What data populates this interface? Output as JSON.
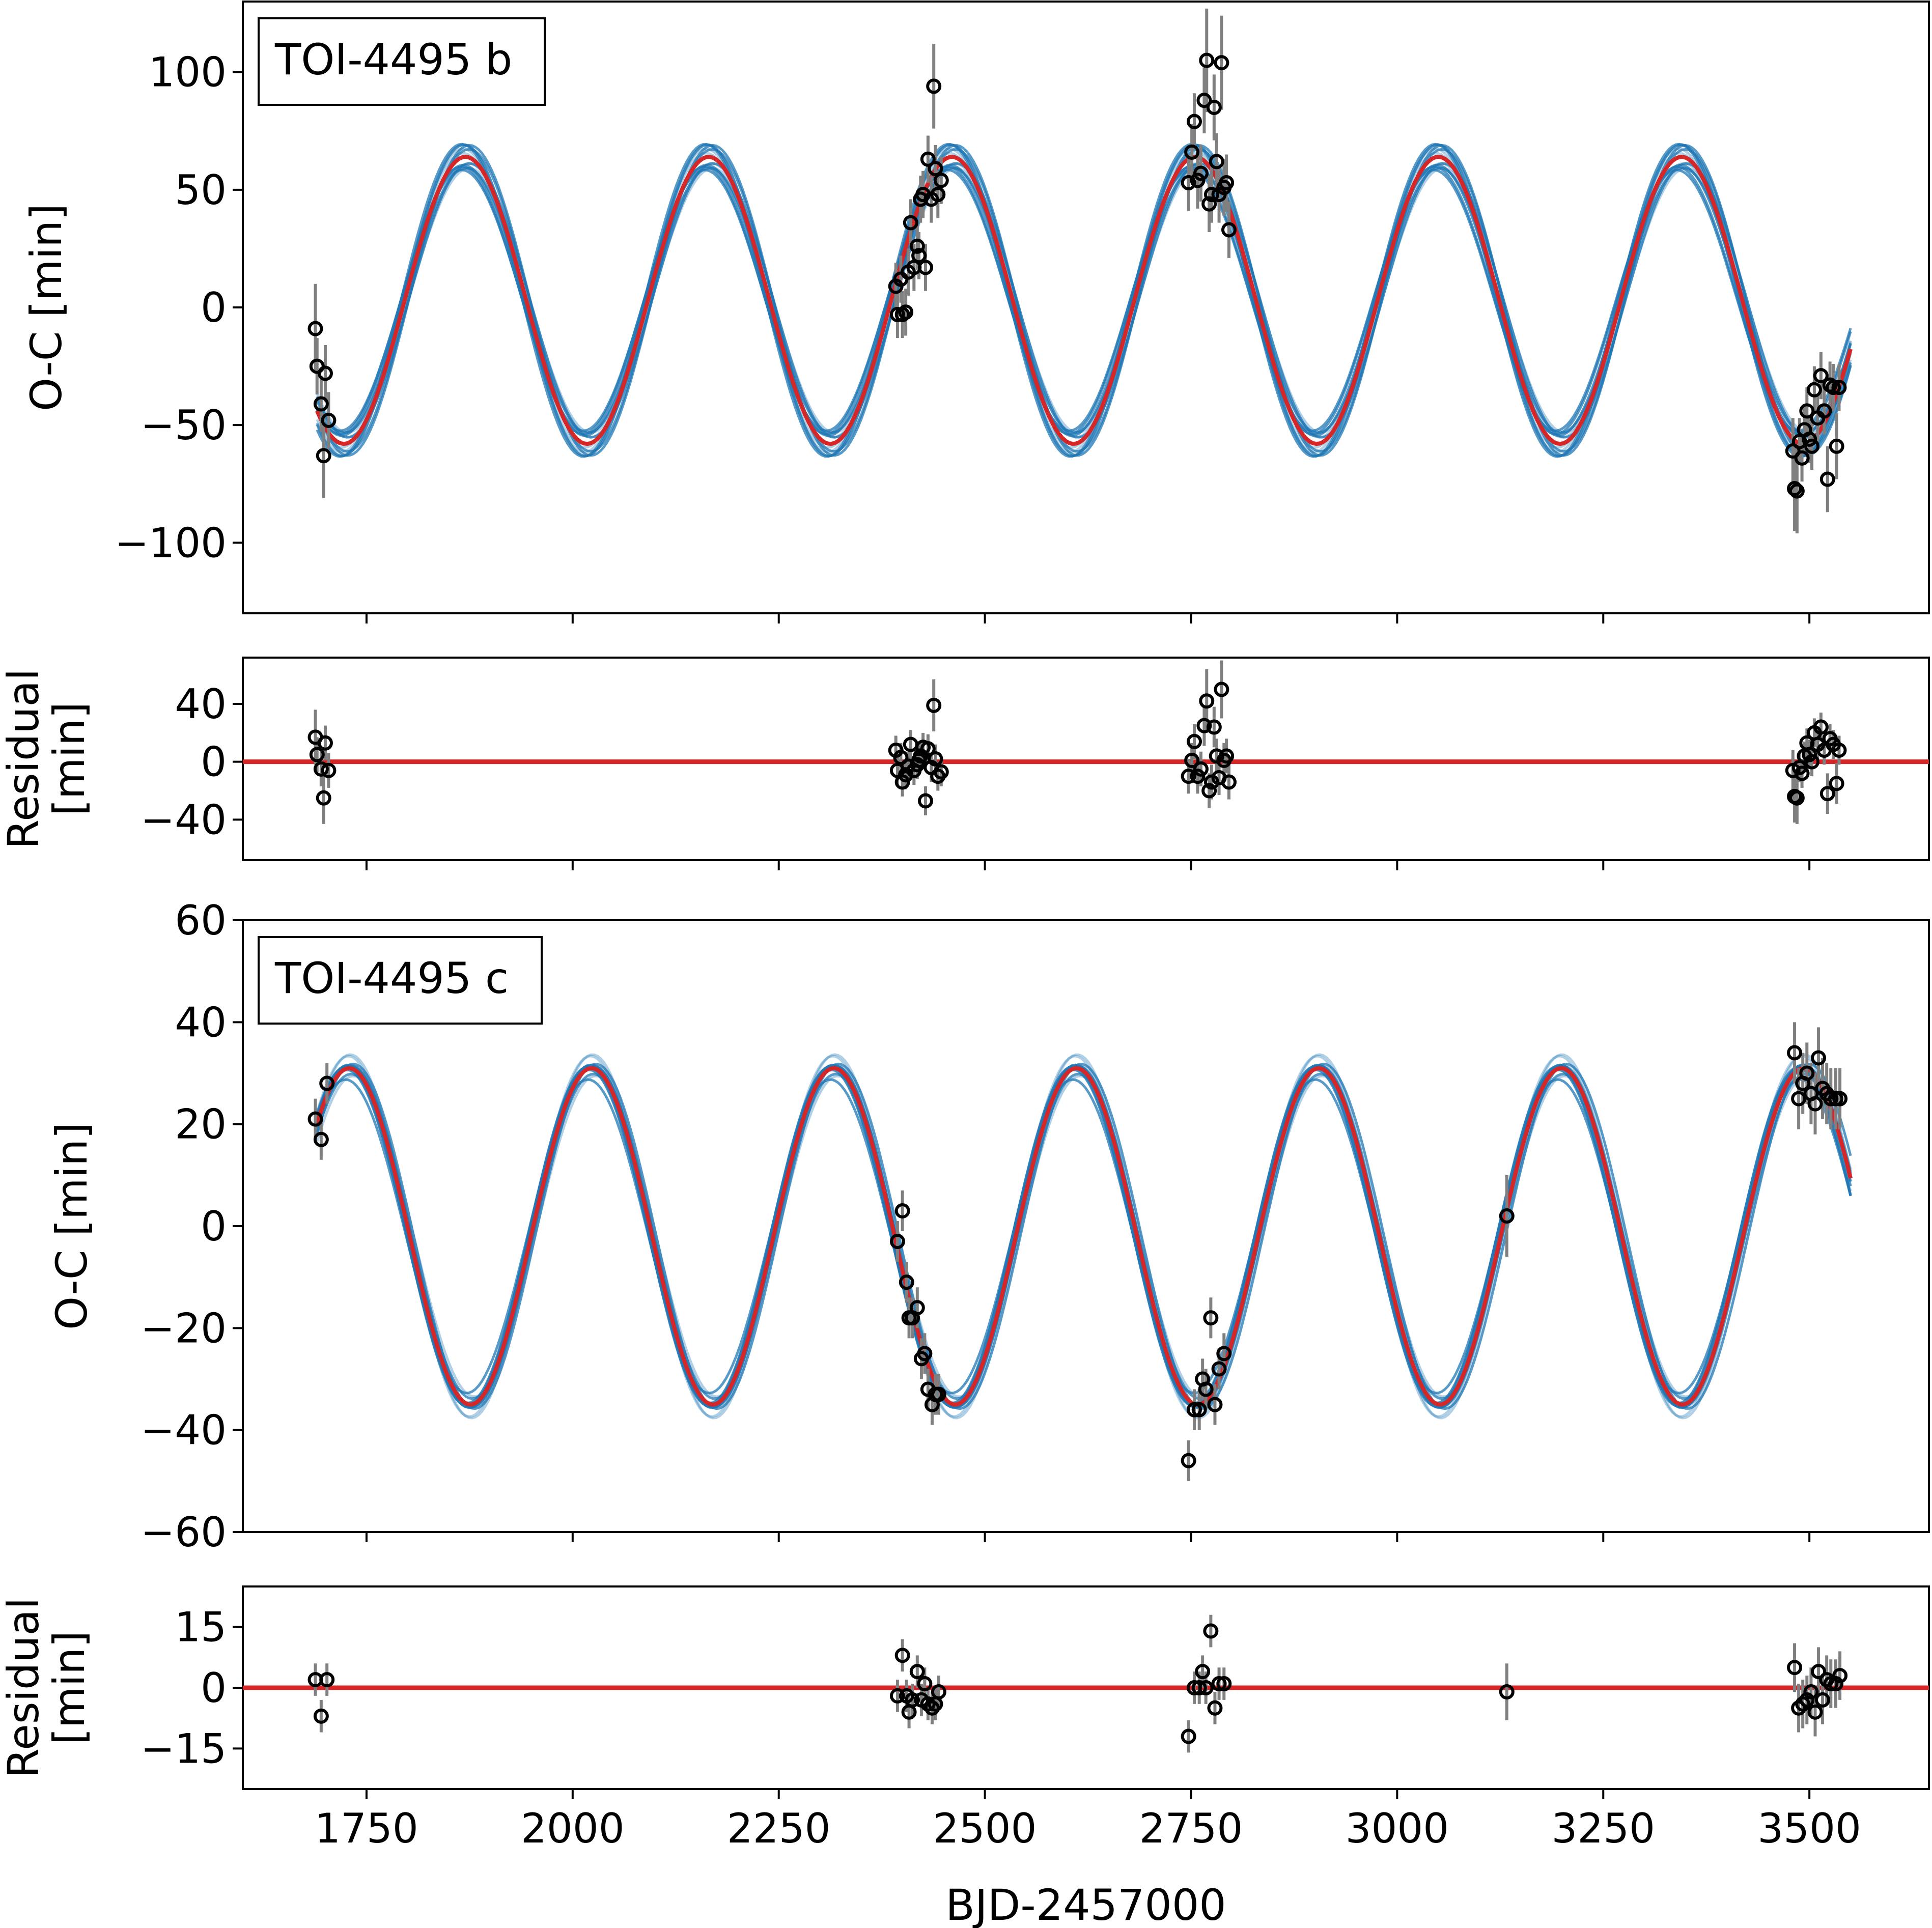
{
  "colors": {
    "model_red": "#d62728",
    "posterior_blue": "#1f77b4",
    "errorbar_gray": "#808080",
    "marker_edge": "#000000",
    "frame": "#000000"
  },
  "figure": {
    "xlabel": "BJD-2457000",
    "xlim": [
      1600,
      3645
    ],
    "xticks": [
      1750,
      2000,
      2250,
      2500,
      2750,
      3000,
      3250,
      3500
    ],
    "xtick_labels": [
      "1750",
      "2000",
      "2250",
      "2500",
      "2750",
      "3000",
      "3250",
      "3500"
    ]
  },
  "chart_data": [
    {
      "type": "scatter",
      "panel": "b-oc",
      "title": "TOI-4495 b",
      "ylabel": "O-C [min]",
      "ylim": [
        -130,
        130
      ],
      "yticks": [
        -100,
        -50,
        0,
        50,
        100
      ],
      "ytick_labels": [
        "−100",
        "−50",
        "0",
        "50",
        "100"
      ],
      "model": {
        "name": "best fit",
        "type": "sinusoid",
        "amplitude": 61,
        "period": 295,
        "phase_x": 1870,
        "offset": 3,
        "x_range": [
          1690,
          3550
        ]
      },
      "posterior_draws": {
        "count": 14,
        "amplitude_spread": 6,
        "period_spread": 2.0
      },
      "points": [
        {
          "x": 1688,
          "y": -9,
          "err": 19
        },
        {
          "x": 1690,
          "y": -25,
          "err": 12
        },
        {
          "x": 1695,
          "y": -41,
          "err": 12
        },
        {
          "x": 1698,
          "y": -63,
          "err": 18
        },
        {
          "x": 1700,
          "y": -28,
          "err": 12
        },
        {
          "x": 1704,
          "y": -48,
          "err": 12
        },
        {
          "x": 2392,
          "y": 9,
          "err": 10
        },
        {
          "x": 2394,
          "y": -3,
          "err": 10
        },
        {
          "x": 2398,
          "y": 12,
          "err": 10
        },
        {
          "x": 2400,
          "y": -3,
          "err": 10
        },
        {
          "x": 2404,
          "y": -2,
          "err": 10
        },
        {
          "x": 2407,
          "y": 15,
          "err": 10
        },
        {
          "x": 2410,
          "y": 36,
          "err": 10
        },
        {
          "x": 2414,
          "y": 17,
          "err": 10
        },
        {
          "x": 2418,
          "y": 26,
          "err": 10
        },
        {
          "x": 2420,
          "y": 22,
          "err": 10
        },
        {
          "x": 2422,
          "y": 46,
          "err": 10
        },
        {
          "x": 2425,
          "y": 48,
          "err": 10
        },
        {
          "x": 2428,
          "y": 17,
          "err": 10
        },
        {
          "x": 2431,
          "y": 63,
          "err": 10
        },
        {
          "x": 2435,
          "y": 46,
          "err": 10
        },
        {
          "x": 2438,
          "y": 94,
          "err": 18
        },
        {
          "x": 2440,
          "y": 59,
          "err": 10
        },
        {
          "x": 2443,
          "y": 48,
          "err": 10
        },
        {
          "x": 2447,
          "y": 54,
          "err": 10
        },
        {
          "x": 2747,
          "y": 53,
          "err": 12
        },
        {
          "x": 2751,
          "y": 66,
          "err": 12
        },
        {
          "x": 2754,
          "y": 79,
          "err": 12
        },
        {
          "x": 2758,
          "y": 54,
          "err": 12
        },
        {
          "x": 2762,
          "y": 57,
          "err": 12
        },
        {
          "x": 2766,
          "y": 88,
          "err": 14
        },
        {
          "x": 2769,
          "y": 105,
          "err": 22
        },
        {
          "x": 2772,
          "y": 44,
          "err": 12
        },
        {
          "x": 2775,
          "y": 48,
          "err": 12
        },
        {
          "x": 2778,
          "y": 85,
          "err": 14
        },
        {
          "x": 2781,
          "y": 62,
          "err": 12
        },
        {
          "x": 2784,
          "y": 48,
          "err": 12
        },
        {
          "x": 2787,
          "y": 104,
          "err": 20
        },
        {
          "x": 2790,
          "y": 51,
          "err": 12
        },
        {
          "x": 2793,
          "y": 53,
          "err": 12
        },
        {
          "x": 2796,
          "y": 33,
          "err": 12
        },
        {
          "x": 3480,
          "y": -61,
          "err": 14
        },
        {
          "x": 3482,
          "y": -77,
          "err": 18
        },
        {
          "x": 3485,
          "y": -78,
          "err": 18
        },
        {
          "x": 3488,
          "y": -57,
          "err": 10
        },
        {
          "x": 3491,
          "y": -64,
          "err": 10
        },
        {
          "x": 3494,
          "y": -52,
          "err": 10
        },
        {
          "x": 3497,
          "y": -44,
          "err": 10
        },
        {
          "x": 3500,
          "y": -56,
          "err": 10
        },
        {
          "x": 3503,
          "y": -59,
          "err": 10
        },
        {
          "x": 3506,
          "y": -35,
          "err": 10
        },
        {
          "x": 3510,
          "y": -47,
          "err": 10
        },
        {
          "x": 3514,
          "y": -29,
          "err": 10
        },
        {
          "x": 3518,
          "y": -44,
          "err": 10
        },
        {
          "x": 3522,
          "y": -73,
          "err": 14
        },
        {
          "x": 3525,
          "y": -33,
          "err": 10
        },
        {
          "x": 3529,
          "y": -34,
          "err": 10
        },
        {
          "x": 3533,
          "y": -59,
          "err": 14
        },
        {
          "x": 3536,
          "y": -34,
          "err": 10
        }
      ]
    },
    {
      "type": "scatter",
      "panel": "b-res",
      "title": "",
      "ylabel": "Residual",
      "ylabel2": "[min]",
      "ylim": [
        -68,
        72
      ],
      "yticks": [
        -40,
        0,
        40
      ],
      "ytick_labels": [
        "−40",
        "0",
        "40"
      ],
      "zero_line": 0,
      "points": [
        {
          "x": 1688,
          "y": 17,
          "err": 19
        },
        {
          "x": 1690,
          "y": 5,
          "err": 12
        },
        {
          "x": 1695,
          "y": -5,
          "err": 12
        },
        {
          "x": 1698,
          "y": -25,
          "err": 18
        },
        {
          "x": 1700,
          "y": 13,
          "err": 12
        },
        {
          "x": 1704,
          "y": -6,
          "err": 12
        },
        {
          "x": 2392,
          "y": 8,
          "err": 10
        },
        {
          "x": 2394,
          "y": -6,
          "err": 10
        },
        {
          "x": 2398,
          "y": 3,
          "err": 10
        },
        {
          "x": 2400,
          "y": -14,
          "err": 10
        },
        {
          "x": 2404,
          "y": -9,
          "err": 10
        },
        {
          "x": 2407,
          "y": -3,
          "err": 10
        },
        {
          "x": 2410,
          "y": 12,
          "err": 10
        },
        {
          "x": 2414,
          "y": -6,
          "err": 10
        },
        {
          "x": 2418,
          "y": -2,
          "err": 10
        },
        {
          "x": 2420,
          "y": 1,
          "err": 10
        },
        {
          "x": 2422,
          "y": 4,
          "err": 10
        },
        {
          "x": 2425,
          "y": 10,
          "err": 10
        },
        {
          "x": 2428,
          "y": -27,
          "err": 10
        },
        {
          "x": 2431,
          "y": 9,
          "err": 10
        },
        {
          "x": 2435,
          "y": -4,
          "err": 10
        },
        {
          "x": 2438,
          "y": 39,
          "err": 18
        },
        {
          "x": 2440,
          "y": 2,
          "err": 10
        },
        {
          "x": 2443,
          "y": -10,
          "err": 10
        },
        {
          "x": 2447,
          "y": -7,
          "err": 10
        },
        {
          "x": 2747,
          "y": -10,
          "err": 12
        },
        {
          "x": 2751,
          "y": 1,
          "err": 12
        },
        {
          "x": 2754,
          "y": 14,
          "err": 12
        },
        {
          "x": 2758,
          "y": -10,
          "err": 12
        },
        {
          "x": 2762,
          "y": -5,
          "err": 12
        },
        {
          "x": 2766,
          "y": 25,
          "err": 14
        },
        {
          "x": 2769,
          "y": 42,
          "err": 22
        },
        {
          "x": 2772,
          "y": -20,
          "err": 12
        },
        {
          "x": 2775,
          "y": -14,
          "err": 12
        },
        {
          "x": 2778,
          "y": 24,
          "err": 14
        },
        {
          "x": 2781,
          "y": 4,
          "err": 12
        },
        {
          "x": 2784,
          "y": -11,
          "err": 12
        },
        {
          "x": 2787,
          "y": 50,
          "err": 20
        },
        {
          "x": 2790,
          "y": 1,
          "err": 12
        },
        {
          "x": 2793,
          "y": 4,
          "err": 12
        },
        {
          "x": 2796,
          "y": -14,
          "err": 12
        },
        {
          "x": 3480,
          "y": -6,
          "err": 14
        },
        {
          "x": 3482,
          "y": -24,
          "err": 18
        },
        {
          "x": 3485,
          "y": -25,
          "err": 18
        },
        {
          "x": 3488,
          "y": -4,
          "err": 10
        },
        {
          "x": 3491,
          "y": -8,
          "err": 10
        },
        {
          "x": 3494,
          "y": 4,
          "err": 10
        },
        {
          "x": 3497,
          "y": 13,
          "err": 10
        },
        {
          "x": 3500,
          "y": 5,
          "err": 10
        },
        {
          "x": 3503,
          "y": 0,
          "err": 10
        },
        {
          "x": 3506,
          "y": 20,
          "err": 10
        },
        {
          "x": 3510,
          "y": 12,
          "err": 10
        },
        {
          "x": 3514,
          "y": 24,
          "err": 10
        },
        {
          "x": 3518,
          "y": 8,
          "err": 10
        },
        {
          "x": 3522,
          "y": -22,
          "err": 14
        },
        {
          "x": 3525,
          "y": 16,
          "err": 10
        },
        {
          "x": 3529,
          "y": 12,
          "err": 10
        },
        {
          "x": 3533,
          "y": -15,
          "err": 14
        },
        {
          "x": 3536,
          "y": 8,
          "err": 10
        }
      ]
    },
    {
      "type": "scatter",
      "panel": "c-oc",
      "title": "TOI-4495 c",
      "ylabel": "O-C [min]",
      "ylim": [
        -60,
        60
      ],
      "yticks": [
        -60,
        -40,
        -20,
        0,
        20,
        40,
        60
      ],
      "ytick_labels": [
        "−60",
        "−40",
        "−20",
        "0",
        "20",
        "40",
        "60"
      ],
      "model": {
        "name": "best fit",
        "type": "sinusoid",
        "amplitude": 33,
        "period": 294,
        "phase_x": 1729,
        "offset": -2,
        "x_range": [
          1690,
          3550
        ]
      },
      "posterior_draws": {
        "count": 14,
        "amplitude_spread": 3,
        "period_spread": 2.0
      },
      "points": [
        {
          "x": 1688,
          "y": 21,
          "err": 4
        },
        {
          "x": 1695,
          "y": 17,
          "err": 4
        },
        {
          "x": 1702,
          "y": 28,
          "err": 4
        },
        {
          "x": 2394,
          "y": -3,
          "err": 4
        },
        {
          "x": 2400,
          "y": 3,
          "err": 4
        },
        {
          "x": 2405,
          "y": -11,
          "err": 4
        },
        {
          "x": 2408,
          "y": -18,
          "err": 4
        },
        {
          "x": 2412,
          "y": -18,
          "err": 4
        },
        {
          "x": 2418,
          "y": -16,
          "err": 4
        },
        {
          "x": 2423,
          "y": -26,
          "err": 4
        },
        {
          "x": 2427,
          "y": -25,
          "err": 4
        },
        {
          "x": 2431,
          "y": -32,
          "err": 4
        },
        {
          "x": 2436,
          "y": -35,
          "err": 4
        },
        {
          "x": 2440,
          "y": -33,
          "err": 4
        },
        {
          "x": 2444,
          "y": -33,
          "err": 4
        },
        {
          "x": 2747,
          "y": -46,
          "err": 4
        },
        {
          "x": 2754,
          "y": -36,
          "err": 4
        },
        {
          "x": 2760,
          "y": -36,
          "err": 4
        },
        {
          "x": 2764,
          "y": -30,
          "err": 4
        },
        {
          "x": 2768,
          "y": -32,
          "err": 4
        },
        {
          "x": 2774,
          "y": -18,
          "err": 4
        },
        {
          "x": 2779,
          "y": -35,
          "err": 4
        },
        {
          "x": 2784,
          "y": -28,
          "err": 4
        },
        {
          "x": 2790,
          "y": -25,
          "err": 4
        },
        {
          "x": 3133,
          "y": 2,
          "err": 8
        },
        {
          "x": 3482,
          "y": 34,
          "err": 6
        },
        {
          "x": 3487,
          "y": 25,
          "err": 6
        },
        {
          "x": 3492,
          "y": 28,
          "err": 6
        },
        {
          "x": 3497,
          "y": 30,
          "err": 6
        },
        {
          "x": 3502,
          "y": 26,
          "err": 6
        },
        {
          "x": 3507,
          "y": 24,
          "err": 6
        },
        {
          "x": 3511,
          "y": 33,
          "err": 6
        },
        {
          "x": 3516,
          "y": 27,
          "err": 6
        },
        {
          "x": 3521,
          "y": 26,
          "err": 6
        },
        {
          "x": 3526,
          "y": 25,
          "err": 6
        },
        {
          "x": 3532,
          "y": 25,
          "err": 6
        },
        {
          "x": 3537,
          "y": 25,
          "err": 6
        }
      ]
    },
    {
      "type": "scatter",
      "panel": "c-res",
      "title": "",
      "ylabel": "Residual",
      "ylabel2": "[min]",
      "ylim": [
        -25,
        25
      ],
      "yticks": [
        -15,
        0,
        15
      ],
      "ytick_labels": [
        "−15",
        "0",
        "15"
      ],
      "zero_line": 0,
      "points": [
        {
          "x": 1688,
          "y": 2,
          "err": 4
        },
        {
          "x": 1695,
          "y": -7,
          "err": 4
        },
        {
          "x": 1702,
          "y": 2,
          "err": 4
        },
        {
          "x": 2394,
          "y": -2,
          "err": 4
        },
        {
          "x": 2400,
          "y": 8,
          "err": 4
        },
        {
          "x": 2405,
          "y": -2,
          "err": 4
        },
        {
          "x": 2408,
          "y": -6,
          "err": 4
        },
        {
          "x": 2412,
          "y": -3,
          "err": 4
        },
        {
          "x": 2418,
          "y": 4,
          "err": 4
        },
        {
          "x": 2423,
          "y": -3,
          "err": 4
        },
        {
          "x": 2427,
          "y": 1,
          "err": 4
        },
        {
          "x": 2431,
          "y": -4,
          "err": 4
        },
        {
          "x": 2436,
          "y": -5,
          "err": 4
        },
        {
          "x": 2440,
          "y": -4,
          "err": 4
        },
        {
          "x": 2444,
          "y": -1,
          "err": 4
        },
        {
          "x": 2747,
          "y": -12,
          "err": 4
        },
        {
          "x": 2754,
          "y": 0,
          "err": 4
        },
        {
          "x": 2760,
          "y": 0,
          "err": 4
        },
        {
          "x": 2764,
          "y": 4,
          "err": 4
        },
        {
          "x": 2768,
          "y": 0,
          "err": 4
        },
        {
          "x": 2774,
          "y": 14,
          "err": 4
        },
        {
          "x": 2779,
          "y": -5,
          "err": 4
        },
        {
          "x": 2784,
          "y": 1,
          "err": 4
        },
        {
          "x": 2790,
          "y": 1,
          "err": 4
        },
        {
          "x": 3133,
          "y": -1,
          "err": 7
        },
        {
          "x": 3482,
          "y": 5,
          "err": 6
        },
        {
          "x": 3487,
          "y": -5,
          "err": 6
        },
        {
          "x": 3492,
          "y": -4,
          "err": 6
        },
        {
          "x": 3497,
          "y": -3,
          "err": 6
        },
        {
          "x": 3502,
          "y": -1,
          "err": 6
        },
        {
          "x": 3507,
          "y": -6,
          "err": 6
        },
        {
          "x": 3511,
          "y": 4,
          "err": 6
        },
        {
          "x": 3516,
          "y": -3,
          "err": 6
        },
        {
          "x": 3521,
          "y": 2,
          "err": 6
        },
        {
          "x": 3526,
          "y": 1,
          "err": 6
        },
        {
          "x": 3532,
          "y": 1,
          "err": 6
        },
        {
          "x": 3537,
          "y": 3,
          "err": 6
        }
      ]
    }
  ]
}
